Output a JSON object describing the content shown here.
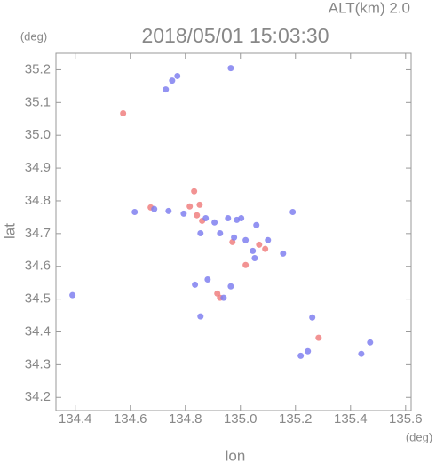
{
  "chart_data": {
    "type": "scatter",
    "title": "2018/05/01 15:03:30",
    "subtitle": "ALT(km) 2.0",
    "x_unit": "(deg)",
    "y_unit": "(deg)",
    "x_label": "lon",
    "y_label": "lat",
    "xlim": [
      134.33,
      135.62
    ],
    "ylim": [
      34.16,
      35.25
    ],
    "xticks": [
      134.4,
      134.6,
      134.8,
      {
        "value": 135,
        "label": "135.0"
      },
      135.2,
      135.4,
      135.6
    ],
    "yticks": [
      34.2,
      34.3,
      34.4,
      34.5,
      34.6,
      34.7,
      34.8,
      34.9,
      {
        "value": 35,
        "label": "35.0"
      },
      35.1,
      35.2
    ],
    "series": [
      {
        "color": "#f08080",
        "x": [
          134.574,
          134.674,
          134.832,
          134.842,
          134.861,
          134.816,
          134.852,
          134.926,
          134.916,
          135.019,
          135.068,
          135.09,
          134.971,
          135.284
        ],
        "y": [
          35.067,
          34.78,
          34.829,
          34.756,
          34.739,
          34.783,
          34.788,
          34.504,
          34.517,
          34.604,
          34.666,
          34.653,
          34.674,
          34.382
        ]
      },
      {
        "color": "#8080f0",
        "x": [
          134.39,
          134.729,
          134.752,
          134.771,
          134.965,
          134.687,
          134.739,
          134.794,
          134.874,
          134.906,
          134.955,
          134.987,
          135.003,
          135.058,
          134.977,
          135.019,
          135.052,
          135.1,
          135.155,
          135.19,
          134.835,
          134.881,
          134.965,
          134.939,
          134.855,
          135.261,
          135.219,
          135.245,
          135.439,
          135.471,
          134.616,
          134.855,
          134.926,
          135.045
        ],
        "y": [
          34.512,
          35.14,
          35.167,
          35.181,
          35.205,
          34.775,
          34.769,
          34.761,
          34.747,
          34.734,
          34.747,
          34.742,
          34.747,
          34.726,
          34.688,
          34.68,
          34.625,
          34.68,
          34.639,
          34.766,
          34.544,
          34.56,
          34.539,
          34.504,
          34.447,
          34.444,
          34.327,
          34.341,
          34.333,
          34.368,
          34.766,
          34.701,
          34.701,
          34.647
        ]
      }
    ]
  }
}
